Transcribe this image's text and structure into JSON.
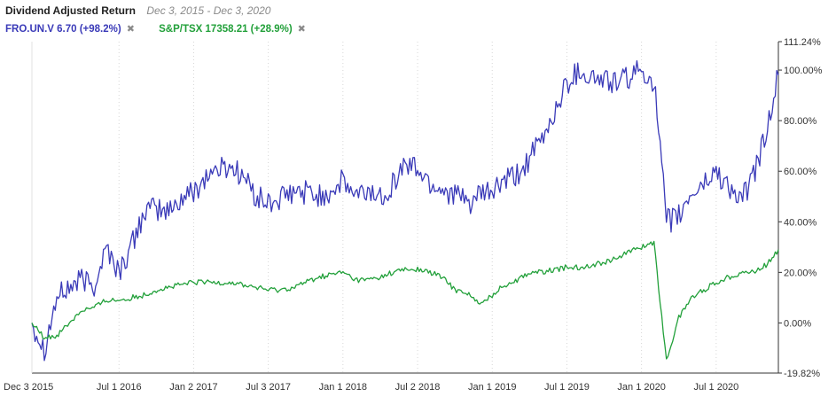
{
  "header": {
    "title": "Dividend Adjusted Return",
    "date_range": "Dec 3, 2015 - Dec 3, 2020"
  },
  "legend": [
    {
      "label": "FRO.UN.V 6.70 (+98.2%)",
      "color": "#3a3ab8",
      "close_icon": "close-x-icon"
    },
    {
      "label": "S&P/TSX 17358.21 (+28.9%)",
      "color": "#22a03a",
      "close_icon": "close-x-icon"
    }
  ],
  "chart_data": {
    "type": "line",
    "title": "Dividend Adjusted Return",
    "xlabel": "",
    "ylabel": "",
    "x_ticks": [
      "Dec 3 2015",
      "Jul 1 2016",
      "Jan 2 2017",
      "Jul 3 2017",
      "Jan 1 2018",
      "Jul 2 2018",
      "Jan 1 2019",
      "Jul 1 2019",
      "Jan 1 2020",
      "Jul 1 2020"
    ],
    "y_ticks": [
      "111.24%",
      "100.00%",
      "80.00%",
      "60.00%",
      "40.00%",
      "20.00%",
      "0.00%",
      "-19.82%"
    ],
    "ylim": [
      -19.82,
      111.24
    ],
    "y_axis_side": "right",
    "grid": "vertical dotted",
    "x": [
      "2015-12",
      "2016-01",
      "2016-02",
      "2016-03",
      "2016-04",
      "2016-05",
      "2016-06",
      "2016-07",
      "2016-08",
      "2016-09",
      "2016-10",
      "2016-11",
      "2016-12",
      "2017-01",
      "2017-02",
      "2017-03",
      "2017-04",
      "2017-05",
      "2017-06",
      "2017-07",
      "2017-08",
      "2017-09",
      "2017-10",
      "2017-11",
      "2017-12",
      "2018-01",
      "2018-02",
      "2018-03",
      "2018-04",
      "2018-05",
      "2018-06",
      "2018-07",
      "2018-08",
      "2018-09",
      "2018-10",
      "2018-11",
      "2018-12",
      "2019-01",
      "2019-02",
      "2019-03",
      "2019-04",
      "2019-05",
      "2019-06",
      "2019-07",
      "2019-08",
      "2019-09",
      "2019-10",
      "2019-11",
      "2019-12",
      "2020-01",
      "2020-02",
      "2020-03",
      "2020-04",
      "2020-05",
      "2020-06",
      "2020-07",
      "2020-08",
      "2020-09",
      "2020-10",
      "2020-11",
      "2020-12"
    ],
    "series": [
      {
        "name": "FRO.UN.V 6.70 (+98.2%)",
        "color": "#3a3ab8",
        "values": [
          0,
          -10,
          10,
          14,
          17,
          15,
          30,
          20,
          30,
          44,
          45,
          44,
          49,
          52,
          58,
          61,
          62,
          58,
          50,
          47,
          49,
          51,
          52,
          50,
          52,
          56,
          50,
          52,
          50,
          55,
          63,
          61,
          55,
          53,
          51,
          47,
          50,
          52,
          56,
          58,
          65,
          72,
          83,
          95,
          100,
          97,
          96,
          95,
          97,
          100,
          96,
          40,
          42,
          51,
          55,
          60,
          54,
          48,
          58,
          75,
          98
        ]
      },
      {
        "name": "S&P/TSX 17358.21 (+28.9%)",
        "color": "#22a03a",
        "values": [
          0,
          -6,
          -5,
          0,
          5,
          6,
          9,
          9,
          10,
          11,
          13,
          14,
          15,
          16,
          16,
          16,
          16,
          15,
          14,
          13,
          13,
          14,
          16,
          18,
          19,
          20,
          17,
          17,
          18,
          20,
          21,
          21,
          20,
          18,
          13,
          12,
          7,
          11,
          15,
          17,
          20,
          20,
          21,
          22,
          22,
          23,
          24,
          26,
          28,
          30,
          32,
          -15,
          2,
          10,
          13,
          16,
          18,
          20,
          20,
          23,
          29
        ]
      }
    ]
  }
}
